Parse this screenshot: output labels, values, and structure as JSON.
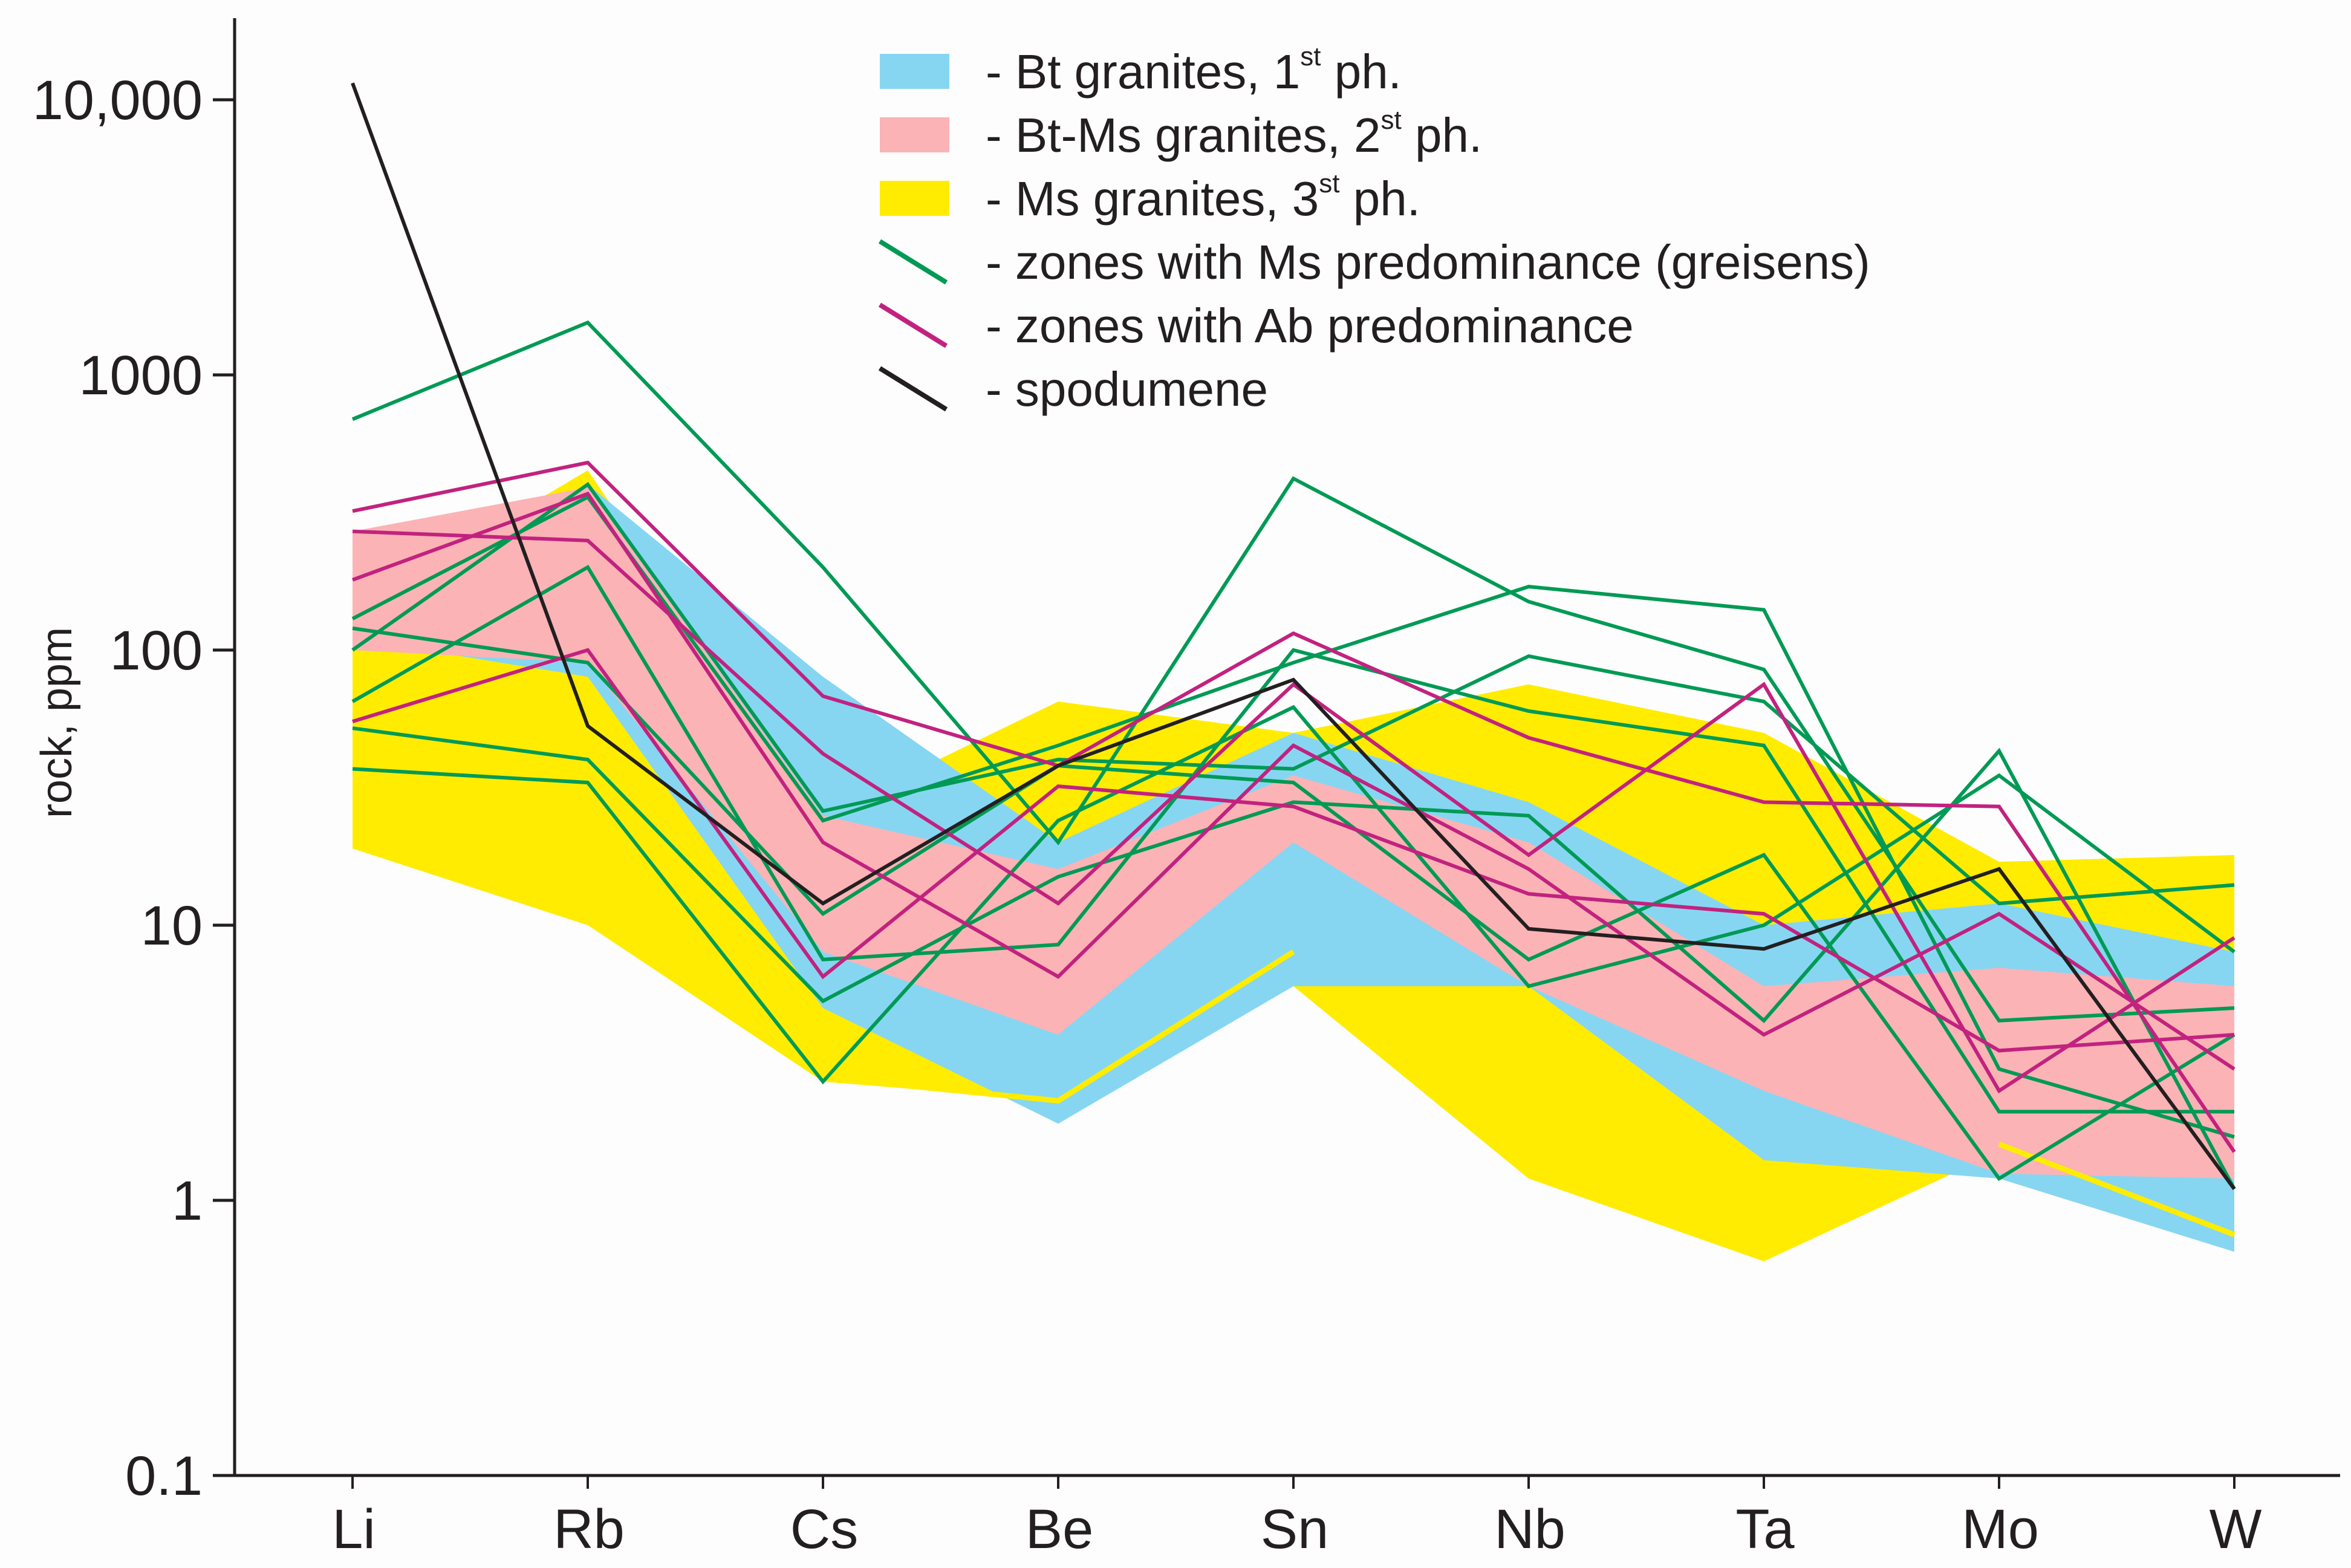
{
  "chart_data": {
    "type": "line",
    "title": "",
    "xlabel": "",
    "ylabel": "rock, ppm",
    "yscale": "log",
    "ylim": [
      0.1,
      20000
    ],
    "categories": [
      "Li",
      "Rb",
      "Cs",
      "Be",
      "Sn",
      "Nb",
      "Ta",
      "Mo",
      "W"
    ],
    "y_ticks": [
      {
        "value": 0.1,
        "label": "0.1"
      },
      {
        "value": 1,
        "label": "1"
      },
      {
        "value": 10,
        "label": "10"
      },
      {
        "value": 100,
        "label": "100"
      },
      {
        "value": 1000,
        "label": "1000"
      },
      {
        "value": 10000,
        "label": "10,000"
      }
    ],
    "legend": [
      {
        "kind": "swatch",
        "color": "#86d6f2",
        "text": "- Bt granites, 1",
        "sup": "st",
        "tail": " ph."
      },
      {
        "kind": "swatch",
        "color": "#fbb3b6",
        "text": "- Bt-Ms granites, 2",
        "sup": "st",
        "tail": " ph."
      },
      {
        "kind": "swatch",
        "color": "#ffec00",
        "text": "- Ms granites, 3",
        "sup": "st",
        "tail": " ph."
      },
      {
        "kind": "line",
        "color": "#009a55",
        "text": "- zones with Ms predominance (greisens)",
        "sup": "",
        "tail": ""
      },
      {
        "kind": "line",
        "color": "#c2227f",
        "text": "- zones with Ab predominance",
        "sup": "",
        "tail": ""
      },
      {
        "kind": "line",
        "color": "#231f20",
        "text": "- spodumene",
        "sup": "",
        "tail": ""
      }
    ],
    "bands": [
      {
        "name": "Ms granites, 3st ph.",
        "color": "#ffec00",
        "upper": [
          140,
          450,
          25,
          65,
          50,
          75,
          50,
          17,
          18
        ],
        "lower": [
          19,
          10,
          2.7,
          2.3,
          6,
          1.2,
          0.6,
          1.5,
          0.75
        ]
      },
      {
        "name": "Bt granites, 1st ph.",
        "color": "#86d6f2",
        "upper": [
          140,
          400,
          80,
          20,
          50,
          28,
          10,
          12,
          8
        ],
        "lower": [
          110,
          80,
          5,
          1.9,
          6,
          6,
          1.4,
          1.2,
          0.65
        ]
      },
      {
        "name": "Bt-Ms granites, 2st ph.",
        "color": "#fbb3b6",
        "upper": [
          270,
          390,
          25,
          16,
          35,
          20,
          6,
          7,
          6
        ],
        "lower": [
          100,
          90,
          8,
          4,
          20,
          6,
          2.5,
          1.25,
          1.2
        ]
      }
    ],
    "series": [
      {
        "name": "Ms granites, 3st ph. (lower)",
        "group": "ms_granite",
        "color": "#ffec00",
        "values": [
          null,
          null,
          2.8,
          2.3,
          8,
          null,
          null,
          1.6,
          0.75
        ]
      },
      {
        "name": "Ms predominance 1",
        "group": "greisen",
        "color": "#009a55",
        "values": [
          690,
          1550,
          200,
          20,
          420,
          150,
          85,
          4.5,
          5
        ]
      },
      {
        "name": "Ms predominance 2",
        "group": "greisen",
        "color": "#009a55",
        "values": [
          130,
          360,
          24,
          45,
          90,
          170,
          140,
          3,
          1.7
        ]
      },
      {
        "name": "Ms predominance 3",
        "group": "greisen",
        "color": "#009a55",
        "values": [
          100,
          400,
          26,
          40,
          37,
          95,
          65,
          12,
          14
        ]
      },
      {
        "name": "Ms predominance 4",
        "group": "greisen",
        "color": "#009a55",
        "values": [
          65,
          200,
          7.5,
          8.5,
          100,
          60,
          45,
          2.1,
          2.1
        ]
      },
      {
        "name": "Ms predominance 5",
        "group": "greisen",
        "color": "#009a55",
        "values": [
          52,
          40,
          5.3,
          15,
          28,
          25,
          4.5,
          43,
          1.1
        ]
      },
      {
        "name": "Ms predominance 6",
        "group": "greisen",
        "color": "#009a55",
        "values": [
          37,
          33,
          2.7,
          24,
          62,
          6,
          10,
          35,
          8
        ]
      },
      {
        "name": "Ms predominance 7",
        "group": "greisen",
        "color": "#009a55",
        "values": [
          120,
          90,
          11,
          38,
          33,
          7.5,
          18,
          1.2,
          4
        ]
      },
      {
        "name": "Ab predominance 1",
        "group": "albitite",
        "color": "#c2227f",
        "values": [
          320,
          480,
          68,
          38,
          115,
          48,
          28,
          27,
          1.5
        ]
      },
      {
        "name": "Ab predominance 2",
        "group": "albitite",
        "color": "#c2227f",
        "values": [
          270,
          250,
          42,
          12,
          75,
          18,
          75,
          2.5,
          9
        ]
      },
      {
        "name": "Ab predominance 3",
        "group": "albitite",
        "color": "#c2227f",
        "values": [
          180,
          370,
          20,
          6.5,
          45,
          16,
          4,
          11,
          3
        ]
      },
      {
        "name": "Ab predominance 4",
        "group": "albitite",
        "color": "#c2227f",
        "values": [
          55,
          100,
          6.5,
          32,
          27,
          13,
          11,
          3.5,
          4
        ]
      },
      {
        "name": "spodumene",
        "group": "spodumene",
        "color": "#231f20",
        "values": [
          11500,
          53,
          12,
          38,
          78,
          9.7,
          8.2,
          16,
          1.1
        ]
      }
    ]
  }
}
